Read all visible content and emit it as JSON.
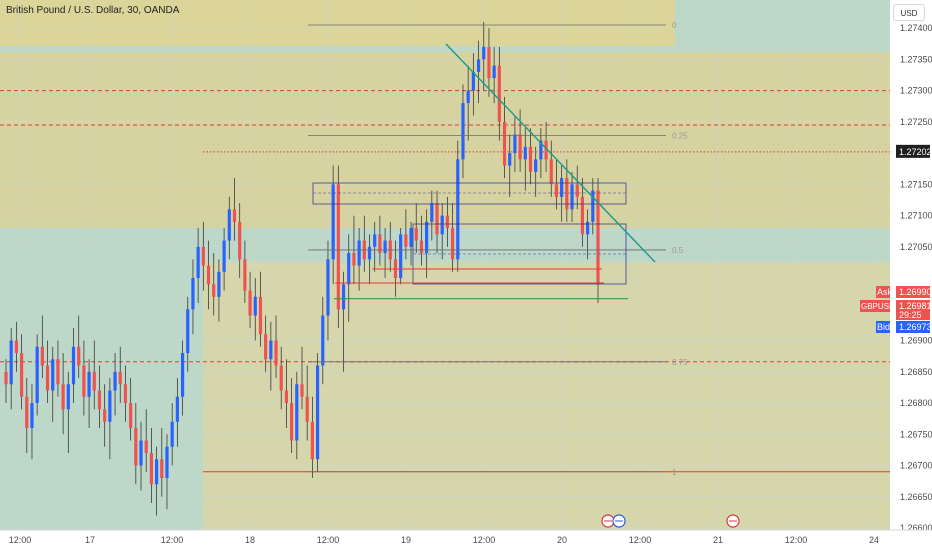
{
  "header": {
    "title": "British Pound / U.S. Dollar, 30, OANDA"
  },
  "currency_button": "USD",
  "chart_data": {
    "type": "candlestick",
    "symbol": "GBPUSD",
    "interval": "30",
    "source": "OANDA",
    "ylim": [
      1.266,
      1.27445
    ],
    "y_ticks": [
      "1.27400",
      "1.27350",
      "1.27300",
      "1.27250",
      "1.27150",
      "1.27100",
      "1.27050",
      "1.26900",
      "1.26850",
      "1.26800",
      "1.26750",
      "1.26700",
      "1.26650",
      "1.26600"
    ],
    "x_ticks": [
      "12:00",
      "17",
      "12:00",
      "18",
      "12:00",
      "19",
      "12:00",
      "20",
      "12:00",
      "21",
      "12:00",
      "24"
    ],
    "price_tags": {
      "marked": "1.27202",
      "ask_label": "Ask",
      "ask": "1.26990",
      "symbol_label": "GBPUSD",
      "last": "1.26981",
      "countdown": "29:25",
      "bid_label": "Bid",
      "bid": "1.26973"
    },
    "fib_levels": [
      {
        "label": "0",
        "price": 1.27405
      },
      {
        "label": "0.25",
        "price": 1.27228
      },
      {
        "label": "0.5",
        "price": 1.27045
      },
      {
        "label": "0.75",
        "price": 1.26866
      },
      {
        "label": "1",
        "price": 1.2669
      }
    ],
    "horizontal_lines": [
      {
        "price": 1.27202,
        "style": "dotted",
        "color": "#e53935"
      },
      {
        "price": 1.273,
        "style": "dashed",
        "color": "#e53935"
      },
      {
        "price": 1.27245,
        "style": "dashed",
        "color": "#e53935"
      },
      {
        "price": 1.26866,
        "style": "dashed",
        "color": "#e53935"
      },
      {
        "price": 1.2669,
        "style": "solid",
        "color": "#e53935"
      }
    ],
    "trend_line": [
      [
        1.27405,
        "19 04:00"
      ],
      [
        1.27045,
        "20 06:00"
      ]
    ],
    "green_support": 1.26967,
    "candles_ohlc": [
      [
        1.2685,
        1.2687,
        1.268,
        1.2683
      ],
      [
        1.2683,
        1.2692,
        1.2679,
        1.269
      ],
      [
        1.269,
        1.2693,
        1.2685,
        1.2688
      ],
      [
        1.2688,
        1.2691,
        1.2679,
        1.2681
      ],
      [
        1.2681,
        1.2684,
        1.2672,
        1.2676
      ],
      [
        1.2676,
        1.2683,
        1.2671,
        1.268
      ],
      [
        1.268,
        1.2691,
        1.2678,
        1.2689
      ],
      [
        1.2689,
        1.2694,
        1.2684,
        1.2686
      ],
      [
        1.2686,
        1.269,
        1.268,
        1.2682
      ],
      [
        1.2682,
        1.2689,
        1.2677,
        1.2687
      ],
      [
        1.2687,
        1.269,
        1.2681,
        1.2683
      ],
      [
        1.2683,
        1.2688,
        1.2675,
        1.2679
      ],
      [
        1.2679,
        1.2685,
        1.2672,
        1.2683
      ],
      [
        1.2683,
        1.2692,
        1.268,
        1.2689
      ],
      [
        1.2689,
        1.2694,
        1.2684,
        1.2686
      ],
      [
        1.2686,
        1.269,
        1.2678,
        1.2681
      ],
      [
        1.2681,
        1.2687,
        1.2676,
        1.2685
      ],
      [
        1.2685,
        1.269,
        1.2679,
        1.2682
      ],
      [
        1.2682,
        1.2686,
        1.2676,
        1.2679
      ],
      [
        1.2679,
        1.2683,
        1.2673,
        1.2677
      ],
      [
        1.2677,
        1.2684,
        1.2671,
        1.2682
      ],
      [
        1.2682,
        1.2688,
        1.2678,
        1.2685
      ],
      [
        1.2685,
        1.2689,
        1.268,
        1.2683
      ],
      [
        1.2683,
        1.2686,
        1.2677,
        1.268
      ],
      [
        1.268,
        1.2684,
        1.2674,
        1.2676
      ],
      [
        1.2676,
        1.268,
        1.2667,
        1.267
      ],
      [
        1.267,
        1.2677,
        1.2666,
        1.2674
      ],
      [
        1.2674,
        1.2679,
        1.2669,
        1.2672
      ],
      [
        1.2672,
        1.2676,
        1.2664,
        1.2667
      ],
      [
        1.2667,
        1.2673,
        1.2662,
        1.2671
      ],
      [
        1.2671,
        1.2676,
        1.2665,
        1.2668
      ],
      [
        1.2668,
        1.2675,
        1.2663,
        1.2673
      ],
      [
        1.2673,
        1.268,
        1.267,
        1.2677
      ],
      [
        1.2677,
        1.2684,
        1.2673,
        1.2681
      ],
      [
        1.2681,
        1.269,
        1.2678,
        1.2688
      ],
      [
        1.2688,
        1.2697,
        1.2685,
        1.2695
      ],
      [
        1.2695,
        1.2703,
        1.2691,
        1.27
      ],
      [
        1.27,
        1.2708,
        1.2696,
        1.2705
      ],
      [
        1.2705,
        1.2709,
        1.2698,
        1.2702
      ],
      [
        1.2702,
        1.2706,
        1.2695,
        1.2699
      ],
      [
        1.2699,
        1.2704,
        1.2694,
        1.2697
      ],
      [
        1.2697,
        1.2703,
        1.2693,
        1.2701
      ],
      [
        1.2701,
        1.2708,
        1.2698,
        1.2706
      ],
      [
        1.2706,
        1.2713,
        1.2703,
        1.2711
      ],
      [
        1.2711,
        1.2716,
        1.2706,
        1.2709
      ],
      [
        1.2709,
        1.2712,
        1.27,
        1.2703
      ],
      [
        1.2703,
        1.2706,
        1.2696,
        1.2698
      ],
      [
        1.2698,
        1.2701,
        1.2692,
        1.2694
      ],
      [
        1.2694,
        1.27,
        1.269,
        1.2697
      ],
      [
        1.2697,
        1.2701,
        1.2689,
        1.2691
      ],
      [
        1.2691,
        1.2694,
        1.2685,
        1.2687
      ],
      [
        1.2687,
        1.2693,
        1.2682,
        1.269
      ],
      [
        1.269,
        1.2694,
        1.2684,
        1.2686
      ],
      [
        1.2686,
        1.2689,
        1.2679,
        1.2682
      ],
      [
        1.2682,
        1.2687,
        1.2676,
        1.268
      ],
      [
        1.268,
        1.2684,
        1.2672,
        1.2674
      ],
      [
        1.2674,
        1.2685,
        1.2671,
        1.2683
      ],
      [
        1.2683,
        1.2689,
        1.2679,
        1.2681
      ],
      [
        1.2681,
        1.2686,
        1.2674,
        1.2677
      ],
      [
        1.2677,
        1.2681,
        1.2668,
        1.2671
      ],
      [
        1.2671,
        1.2688,
        1.2669,
        1.2686
      ],
      [
        1.2686,
        1.2697,
        1.2683,
        1.2694
      ],
      [
        1.2694,
        1.2706,
        1.269,
        1.2703
      ],
      [
        1.2703,
        1.2718,
        1.2699,
        1.2715
      ],
      [
        1.2715,
        1.2718,
        1.2692,
        1.2695
      ],
      [
        1.2695,
        1.2701,
        1.2685,
        1.2699
      ],
      [
        1.2699,
        1.2707,
        1.2693,
        1.2704
      ],
      [
        1.2704,
        1.271,
        1.2699,
        1.2702
      ],
      [
        1.2702,
        1.2708,
        1.2698,
        1.2706
      ],
      [
        1.2706,
        1.271,
        1.2701,
        1.2703
      ],
      [
        1.2703,
        1.2707,
        1.2699,
        1.2705
      ],
      [
        1.2705,
        1.2709,
        1.2701,
        1.2707
      ],
      [
        1.2707,
        1.271,
        1.2702,
        1.2704
      ],
      [
        1.2704,
        1.2708,
        1.27,
        1.2706
      ],
      [
        1.2706,
        1.2709,
        1.2701,
        1.2703
      ],
      [
        1.2703,
        1.2706,
        1.2697,
        1.27
      ],
      [
        1.27,
        1.2708,
        1.2699,
        1.2707
      ],
      [
        1.2707,
        1.2711,
        1.2703,
        1.2705
      ],
      [
        1.2705,
        1.2709,
        1.2702,
        1.2708
      ],
      [
        1.2708,
        1.2712,
        1.2704,
        1.2706
      ],
      [
        1.2706,
        1.271,
        1.2702,
        1.2704
      ],
      [
        1.2704,
        1.2711,
        1.27,
        1.2709
      ],
      [
        1.2709,
        1.2714,
        1.2706,
        1.2712
      ],
      [
        1.2712,
        1.2714,
        1.2704,
        1.2707
      ],
      [
        1.2707,
        1.2712,
        1.2703,
        1.271
      ],
      [
        1.271,
        1.2713,
        1.2705,
        1.2708
      ],
      [
        1.2708,
        1.2712,
        1.2701,
        1.2703
      ],
      [
        1.2703,
        1.2722,
        1.2701,
        1.2719
      ],
      [
        1.2719,
        1.2731,
        1.2716,
        1.2728
      ],
      [
        1.2728,
        1.2734,
        1.2722,
        1.273
      ],
      [
        1.273,
        1.2736,
        1.2726,
        1.2733
      ],
      [
        1.2733,
        1.2738,
        1.2728,
        1.2735
      ],
      [
        1.2735,
        1.2741,
        1.273,
        1.2737
      ],
      [
        1.2737,
        1.274,
        1.2729,
        1.2732
      ],
      [
        1.2732,
        1.2737,
        1.2728,
        1.2734
      ],
      [
        1.2734,
        1.2737,
        1.2722,
        1.2725
      ],
      [
        1.2725,
        1.2729,
        1.2716,
        1.2718
      ],
      [
        1.2718,
        1.2723,
        1.2713,
        1.272
      ],
      [
        1.272,
        1.2726,
        1.2717,
        1.2723
      ],
      [
        1.2723,
        1.2727,
        1.2717,
        1.2719
      ],
      [
        1.2719,
        1.2724,
        1.2714,
        1.2721
      ],
      [
        1.2721,
        1.2724,
        1.2715,
        1.2717
      ],
      [
        1.2717,
        1.2721,
        1.2713,
        1.2719
      ],
      [
        1.2719,
        1.2724,
        1.2716,
        1.2722
      ],
      [
        1.2722,
        1.2725,
        1.2717,
        1.2719
      ],
      [
        1.2719,
        1.2722,
        1.2713,
        1.2715
      ],
      [
        1.2715,
        1.2719,
        1.2711,
        1.2713
      ],
      [
        1.2713,
        1.2718,
        1.2709,
        1.2716
      ],
      [
        1.2716,
        1.2719,
        1.2709,
        1.2711
      ],
      [
        1.2711,
        1.2717,
        1.2709,
        1.2715
      ],
      [
        1.2715,
        1.2718,
        1.2711,
        1.2713
      ],
      [
        1.2713,
        1.2716,
        1.2705,
        1.2707
      ],
      [
        1.2707,
        1.2711,
        1.2703,
        1.2709
      ],
      [
        1.2709,
        1.2716,
        1.2707,
        1.2714
      ],
      [
        1.2714,
        1.2716,
        1.2696,
        1.2699
      ]
    ]
  }
}
